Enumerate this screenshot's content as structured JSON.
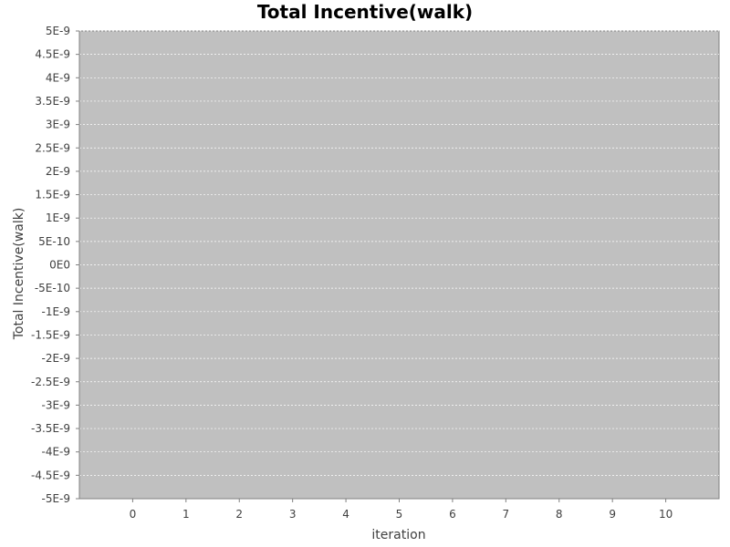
{
  "chart_data": {
    "type": "line",
    "title": "Total Incentive(walk)",
    "xlabel": "iteration",
    "ylabel": "Total Incentive(walk)",
    "x_ticks": [
      "0",
      "1",
      "2",
      "3",
      "4",
      "5",
      "6",
      "7",
      "8",
      "9",
      "10"
    ],
    "x_range": [
      -1,
      11
    ],
    "y_ticks": [
      "5E-9",
      "4.5E-9",
      "4E-9",
      "3.5E-9",
      "3E-9",
      "2.5E-9",
      "2E-9",
      "1.5E-9",
      "1E-9",
      "5E-10",
      "0E0",
      "-5E-10",
      "-1E-9",
      "-1.5E-9",
      "-2E-9",
      "-2.5E-9",
      "-3E-9",
      "-3.5E-9",
      "-4E-9",
      "-4.5E-9",
      "-5E-9"
    ],
    "ylim": [
      -5e-09,
      5e-09
    ],
    "grid": true,
    "series": [],
    "colors": {
      "plot_background": "#c0c0c0",
      "grid": "#ffffff",
      "axis": "#808080"
    }
  }
}
